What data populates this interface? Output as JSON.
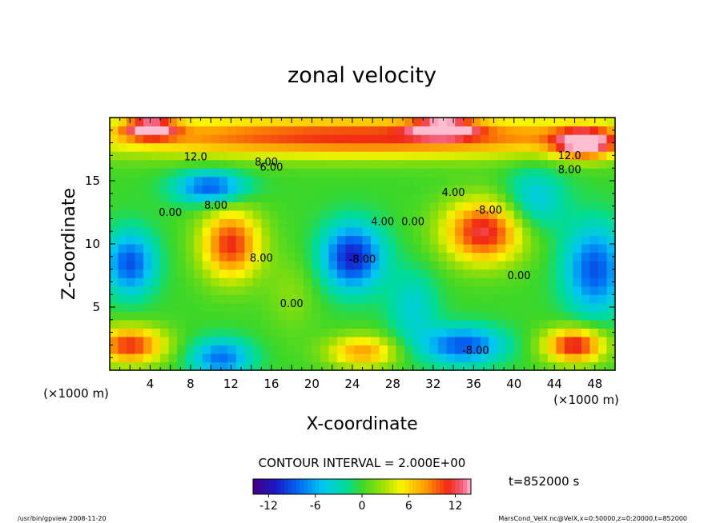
{
  "chart_data": {
    "type": "heatmap",
    "title": "zonal velocity",
    "xlabel": "X-coordinate",
    "ylabel": "Z-coordinate",
    "x_unit_label": "(×1000 m)",
    "y_unit_label": "(×1000 m)",
    "xlim": [
      0,
      50
    ],
    "ylim": [
      0,
      20
    ],
    "x_ticks": [
      4,
      8,
      12,
      16,
      20,
      24,
      28,
      32,
      36,
      40,
      44,
      48
    ],
    "y_ticks": [
      5,
      10,
      15
    ],
    "contour_interval_text": "CONTOUR INTERVAL = 2.000E+00",
    "time_label": "t=852000 s",
    "colorbar": {
      "min": -14,
      "max": 14,
      "ticks": [
        -12,
        -6,
        0,
        6,
        12
      ]
    },
    "contour_labels": [
      {
        "text": "12.0",
        "x": 8.5,
        "y": 16.6
      },
      {
        "text": "8.00",
        "x": 15.5,
        "y": 16.2
      },
      {
        "text": "6.00",
        "x": 16.0,
        "y": 15.8
      },
      {
        "text": "8.00",
        "x": 10.5,
        "y": 12.8
      },
      {
        "text": "0.00",
        "x": 6.0,
        "y": 12.2
      },
      {
        "text": "8.00",
        "x": 15.0,
        "y": 8.6
      },
      {
        "text": "0.00",
        "x": 18.0,
        "y": 5.0
      },
      {
        "text": "-8.00",
        "x": 25.0,
        "y": 8.5
      },
      {
        "text": "4.00",
        "x": 27.0,
        "y": 11.5
      },
      {
        "text": "0.00",
        "x": 30.0,
        "y": 11.5
      },
      {
        "text": "4.00",
        "x": 34.0,
        "y": 13.8
      },
      {
        "text": "-8.00",
        "x": 37.5,
        "y": 12.4
      },
      {
        "text": "0.00",
        "x": 40.5,
        "y": 7.2
      },
      {
        "text": "-8.00",
        "x": 36.2,
        "y": 1.3
      },
      {
        "text": "12.0",
        "x": 45.5,
        "y": 16.7
      },
      {
        "text": "8.00",
        "x": 45.5,
        "y": 15.6
      }
    ],
    "blobs": [
      {
        "x": 25,
        "y": 18.5,
        "v": 11,
        "sx": 30,
        "sy": 1.6
      },
      {
        "x": 4,
        "y": 19.2,
        "v": 13,
        "sx": 2.5,
        "sy": 0.8
      },
      {
        "x": 33,
        "y": 19.2,
        "v": 13,
        "sx": 3.0,
        "sy": 0.7
      },
      {
        "x": 47,
        "y": 18.0,
        "v": 12,
        "sx": 3.0,
        "sy": 1.2
      },
      {
        "x": 10,
        "y": 14.5,
        "v": -9,
        "sx": 3.5,
        "sy": 1.3
      },
      {
        "x": 12,
        "y": 10,
        "v": 11,
        "sx": 3.0,
        "sy": 2.8
      },
      {
        "x": 24,
        "y": 9,
        "v": -11,
        "sx": 3.0,
        "sy": 2.6
      },
      {
        "x": 37,
        "y": 11,
        "v": 12,
        "sx": 4.0,
        "sy": 2.5
      },
      {
        "x": 2,
        "y": 8.5,
        "v": -9,
        "sx": 2.5,
        "sy": 2.5
      },
      {
        "x": 48,
        "y": 8,
        "v": -9,
        "sx": 3.0,
        "sy": 3.5
      },
      {
        "x": 2,
        "y": 2,
        "v": 11,
        "sx": 3.5,
        "sy": 1.5
      },
      {
        "x": 11,
        "y": 1,
        "v": -8,
        "sx": 3.0,
        "sy": 1.5
      },
      {
        "x": 25,
        "y": 1.5,
        "v": 8,
        "sx": 3.5,
        "sy": 1.3
      },
      {
        "x": 35,
        "y": 2,
        "v": -9,
        "sx": 4.0,
        "sy": 1.5
      },
      {
        "x": 46,
        "y": 2,
        "v": 12,
        "sx": 3.0,
        "sy": 1.4
      },
      {
        "x": 42,
        "y": 13.5,
        "v": -5,
        "sx": 3.0,
        "sy": 2.5
      },
      {
        "x": 30,
        "y": 5,
        "v": -4,
        "sx": 2.5,
        "sy": 3.0
      },
      {
        "x": 18,
        "y": 6,
        "v": 2,
        "sx": 2.5,
        "sy": 3.0
      }
    ]
  },
  "footer": {
    "left": "/usr/bin/gpview   2008-11-20",
    "right": "MarsCond_VelX.nc@VelX,x=0:50000,z=0:20000,t=852000"
  }
}
